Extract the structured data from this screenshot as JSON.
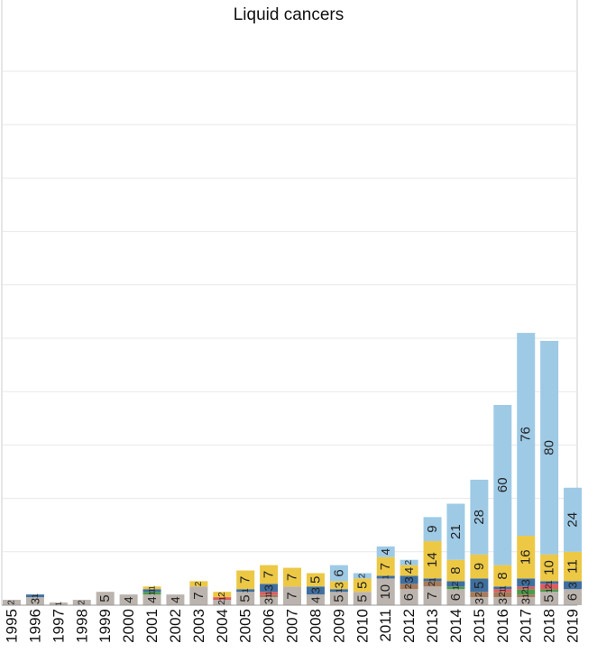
{
  "title": "Liquid cancers",
  "colors": {
    "gray": "#bbb3ad",
    "brown": "#a57b5c",
    "green": "#4e9a4b",
    "red": "#e05a5f",
    "blue": "#3f6fa0",
    "yellow": "#ecc845",
    "light_blue": "#9ecae6",
    "grid": "#e8e8e8",
    "frame": "#cccccc"
  },
  "chart_data": {
    "type": "bar",
    "stacked": true,
    "orientation": "vertical",
    "title": "Liquid cancers",
    "xlabel": "",
    "ylabel": "",
    "ylim": [
      0,
      205
    ],
    "y_ticks_labeled": false,
    "grid": "horizontal",
    "categories": [
      "1995",
      "1996",
      "1997",
      "1998",
      "1999",
      "2000",
      "2001",
      "2002",
      "2003",
      "2004",
      "2005",
      "2006",
      "2007",
      "2008",
      "2009",
      "2010",
      "2011",
      "2012",
      "2013",
      "2014",
      "2015",
      "2016",
      "2017",
      "2018",
      "2019"
    ],
    "series": [
      {
        "color_key": "gray",
        "values": [
          2,
          3,
          1,
          2,
          5,
          4,
          4,
          4,
          7,
          2,
          5,
          3,
          7,
          4,
          5,
          5,
          10,
          6,
          7,
          6,
          3,
          3,
          3,
          5,
          6
        ]
      },
      {
        "color_key": "brown",
        "values": [
          0,
          0,
          0,
          0,
          0,
          0,
          0,
          0,
          0,
          0,
          0,
          1,
          0,
          0,
          0,
          0,
          0,
          2,
          2,
          0,
          2,
          2,
          1,
          0,
          0
        ]
      },
      {
        "color_key": "green",
        "values": [
          0,
          0,
          0,
          0,
          0,
          0,
          1,
          0,
          0,
          0,
          0,
          0,
          0,
          0,
          0,
          0,
          0,
          0,
          0,
          1,
          0,
          0,
          2,
          1,
          0
        ]
      },
      {
        "color_key": "red",
        "values": [
          0,
          0,
          0,
          0,
          0,
          0,
          0,
          0,
          0,
          1,
          0,
          1,
          0,
          0,
          0,
          0,
          0,
          0,
          0,
          0,
          0,
          1,
          1,
          2,
          0
        ]
      },
      {
        "color_key": "blue",
        "values": [
          0,
          1,
          0,
          0,
          0,
          0,
          1,
          0,
          0,
          0,
          1,
          3,
          0,
          3,
          1,
          0,
          1,
          3,
          1,
          2,
          5,
          1,
          3,
          1,
          3
        ]
      },
      {
        "color_key": "yellow",
        "values": [
          0,
          0,
          0,
          0,
          0,
          0,
          1,
          0,
          2,
          2,
          7,
          7,
          7,
          5,
          3,
          5,
          7,
          4,
          14,
          8,
          9,
          8,
          16,
          10,
          11
        ]
      },
      {
        "color_key": "light_blue",
        "values": [
          0,
          0,
          0,
          0,
          0,
          0,
          0,
          0,
          0,
          0,
          0,
          0,
          0,
          0,
          6,
          2,
          4,
          2,
          9,
          21,
          28,
          60,
          76,
          80,
          24
        ]
      }
    ]
  }
}
